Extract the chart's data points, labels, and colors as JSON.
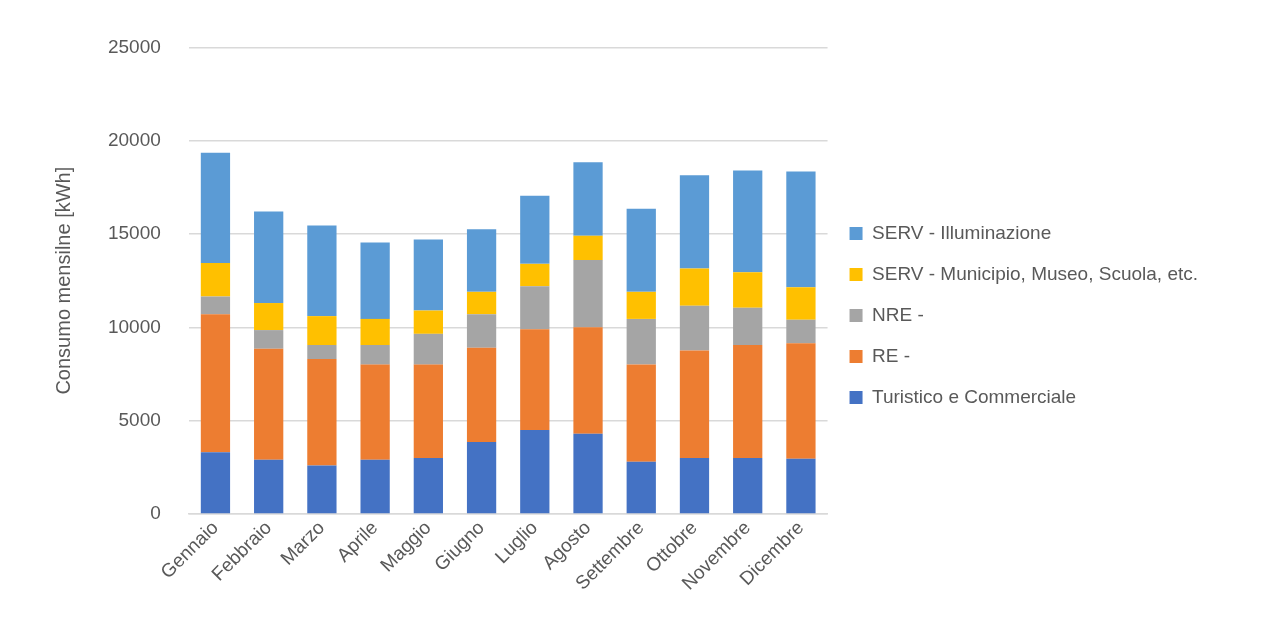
{
  "chart_data": {
    "type": "bar",
    "stacked": true,
    "ylabel": "Consumo mensilne [kWh]",
    "categories": [
      "Gennaio",
      "Febbraio",
      "Marzo",
      "Aprile",
      "Maggio",
      "Giugno",
      "Luglio",
      "Agosto",
      "Settembre",
      "Ottobre",
      "Novembre",
      "Dicembre"
    ],
    "series": [
      {
        "name": "Turistico e Commerciale",
        "color": "#4472c4",
        "values": [
          3300,
          2900,
          2600,
          2900,
          3000,
          3850,
          4500,
          4300,
          2800,
          3000,
          3000,
          2950
        ]
      },
      {
        "name": "RE -",
        "color": "#ed7d31",
        "values": [
          7400,
          5950,
          5700,
          5100,
          5000,
          5050,
          5400,
          5700,
          5200,
          5750,
          6050,
          6200
        ]
      },
      {
        "name": "NRE -",
        "color": "#a5a5a5",
        "values": [
          950,
          1000,
          750,
          1050,
          1650,
          1800,
          2300,
          3600,
          2450,
          2400,
          2000,
          1250
        ]
      },
      {
        "name": "SERV - Municipio, Museo, Scuola, etc.",
        "color": "#ffc000",
        "values": [
          1800,
          1450,
          1550,
          1400,
          1250,
          1200,
          1200,
          1300,
          1450,
          2000,
          1900,
          1750
        ]
      },
      {
        "name": "SERV - Illuminazione",
        "color": "#5b9bd5",
        "values": [
          5900,
          4900,
          4850,
          4100,
          3800,
          3350,
          3650,
          3950,
          4450,
          5000,
          5450,
          6200
        ]
      }
    ],
    "ylim": [
      0,
      25000
    ],
    "yticks": [
      0,
      5000,
      10000,
      15000,
      20000,
      25000
    ],
    "grid": "y",
    "legend": "right"
  }
}
